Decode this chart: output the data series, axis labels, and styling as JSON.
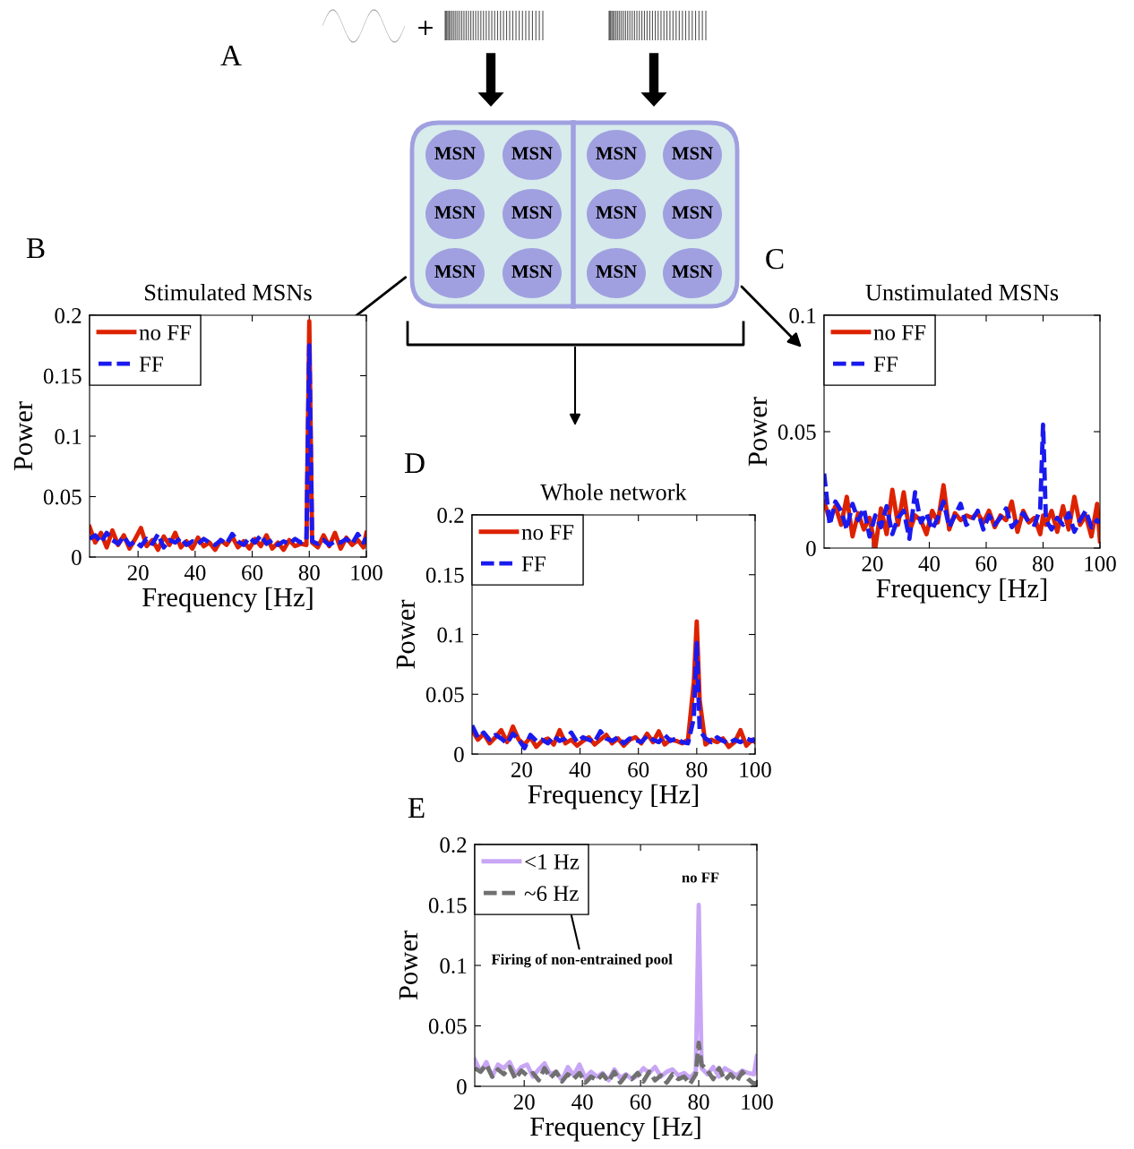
{
  "chart_data": [
    {
      "type": "other",
      "annotations": [
        "A",
        "+",
        "MSN",
        "MSN",
        "MSN",
        "MSN",
        "MSN",
        "MSN",
        "MSN",
        "MSN",
        "MSN",
        "MSN",
        "MSN",
        "MSN"
      ]
    },
    {
      "type": "line",
      "title": "Stimulated MSNs",
      "xlabel": "Frequency [Hz]",
      "ylabel": "Power",
      "annotations": [
        "B"
      ],
      "x": [
        3,
        5,
        7,
        9,
        11,
        13,
        15,
        17,
        19,
        21,
        23,
        25,
        27,
        29,
        31,
        33,
        35,
        37,
        39,
        41,
        43,
        45,
        47,
        49,
        51,
        53,
        55,
        57,
        59,
        61,
        63,
        65,
        67,
        69,
        71,
        73,
        75,
        77,
        79,
        80,
        81,
        83,
        85,
        87,
        89,
        91,
        93,
        95,
        97,
        99,
        100
      ],
      "xlim": [
        3,
        100
      ],
      "ylim": [
        0,
        0.2
      ],
      "xticks": [
        20,
        40,
        60,
        80,
        100
      ],
      "yticks": [
        0,
        0.05,
        0.1,
        0.15,
        0.2
      ],
      "legend": "top left",
      "grid": false,
      "series": [
        {
          "name": "no FF",
          "color": "#dd2200",
          "line_style": "solid",
          "values": [
            0.025,
            0.012,
            0.02,
            0.008,
            0.022,
            0.01,
            0.018,
            0.007,
            0.015,
            0.024,
            0.009,
            0.014,
            0.006,
            0.017,
            0.01,
            0.02,
            0.008,
            0.013,
            0.007,
            0.016,
            0.009,
            0.012,
            0.006,
            0.014,
            0.01,
            0.017,
            0.008,
            0.013,
            0.007,
            0.015,
            0.009,
            0.018,
            0.007,
            0.012,
            0.006,
            0.014,
            0.009,
            0.011,
            0.01,
            0.195,
            0.012,
            0.008,
            0.018,
            0.009,
            0.02,
            0.007,
            0.016,
            0.01,
            0.014,
            0.008,
            0.02
          ]
        },
        {
          "name": "FF",
          "color": "#1a1aee",
          "line_style": "dashed",
          "values": [
            0.015,
            0.018,
            0.012,
            0.02,
            0.014,
            0.011,
            0.017,
            0.01,
            0.013,
            0.009,
            0.015,
            0.011,
            0.019,
            0.008,
            0.014,
            0.012,
            0.016,
            0.01,
            0.013,
            0.011,
            0.015,
            0.012,
            0.01,
            0.014,
            0.011,
            0.019,
            0.013,
            0.01,
            0.016,
            0.012,
            0.018,
            0.011,
            0.014,
            0.01,
            0.013,
            0.011,
            0.015,
            0.012,
            0.014,
            0.175,
            0.013,
            0.011,
            0.014,
            0.01,
            0.013,
            0.012,
            0.015,
            0.011,
            0.019,
            0.012,
            0.016
          ]
        }
      ]
    },
    {
      "type": "line",
      "title": "Unstimulated MSNs",
      "xlabel": "Frequency [Hz]",
      "ylabel": "Power",
      "annotations": [
        "C"
      ],
      "x": [
        3,
        5,
        7,
        9,
        11,
        13,
        15,
        17,
        19,
        21,
        23,
        25,
        27,
        29,
        31,
        33,
        35,
        37,
        39,
        41,
        43,
        45,
        47,
        49,
        51,
        53,
        55,
        57,
        59,
        61,
        63,
        65,
        67,
        69,
        71,
        73,
        75,
        77,
        79,
        80,
        81,
        83,
        85,
        87,
        89,
        91,
        93,
        95,
        97,
        99,
        100
      ],
      "xlim": [
        3,
        100
      ],
      "ylim": [
        0,
        0.1
      ],
      "xticks": [
        20,
        40,
        60,
        80,
        100
      ],
      "yticks": [
        0,
        0.05,
        0.1
      ],
      "legend": "top left",
      "grid": false,
      "series": [
        {
          "name": "no FF",
          "color": "#dd2200",
          "line_style": "solid",
          "values": [
            0.02,
            0.012,
            0.018,
            0.01,
            0.022,
            0.005,
            0.015,
            0.008,
            0.013,
            0.0,
            0.017,
            0.006,
            0.025,
            0.01,
            0.024,
            0.007,
            0.014,
            0.012,
            0.006,
            0.016,
            0.011,
            0.027,
            0.008,
            0.015,
            0.012,
            0.014,
            0.013,
            0.015,
            0.011,
            0.016,
            0.009,
            0.014,
            0.012,
            0.02,
            0.007,
            0.016,
            0.011,
            0.013,
            0.006,
            0.014,
            0.01,
            0.016,
            0.007,
            0.018,
            0.008,
            0.022,
            0.01,
            0.014,
            0.005,
            0.019,
            0.003
          ]
        },
        {
          "name": "FF",
          "color": "#1a1aee",
          "line_style": "dashed",
          "values": [
            0.032,
            0.01,
            0.02,
            0.016,
            0.008,
            0.019,
            0.012,
            0.017,
            0.005,
            0.014,
            0.009,
            0.018,
            0.006,
            0.013,
            0.016,
            0.004,
            0.024,
            0.011,
            0.015,
            0.008,
            0.013,
            0.02,
            0.009,
            0.014,
            0.019,
            0.01,
            0.012,
            0.016,
            0.008,
            0.014,
            0.01,
            0.013,
            0.017,
            0.009,
            0.012,
            0.015,
            0.011,
            0.01,
            0.017,
            0.053,
            0.012,
            0.008,
            0.013,
            0.01,
            0.015,
            0.007,
            0.012,
            0.016,
            0.009,
            0.012,
            0.011
          ]
        }
      ]
    },
    {
      "type": "line",
      "title": "Whole network",
      "xlabel": "Frequency [Hz]",
      "ylabel": "Power",
      "annotations": [
        "D"
      ],
      "x": [
        3,
        5,
        7,
        9,
        11,
        13,
        15,
        17,
        19,
        21,
        23,
        25,
        27,
        29,
        31,
        33,
        35,
        37,
        39,
        41,
        43,
        45,
        47,
        49,
        51,
        53,
        55,
        57,
        59,
        61,
        63,
        65,
        67,
        69,
        71,
        73,
        75,
        77,
        79,
        80,
        81,
        83,
        85,
        87,
        89,
        91,
        93,
        95,
        97,
        99,
        100
      ],
      "xlim": [
        3,
        100
      ],
      "ylim": [
        0,
        0.2
      ],
      "xticks": [
        20,
        40,
        60,
        80,
        100
      ],
      "yticks": [
        0,
        0.05,
        0.1,
        0.15,
        0.2
      ],
      "legend": "top left",
      "grid": false,
      "series": [
        {
          "name": "no FF",
          "color": "#dd2200",
          "line_style": "solid",
          "values": [
            0.02,
            0.012,
            0.017,
            0.009,
            0.014,
            0.02,
            0.01,
            0.023,
            0.012,
            0.008,
            0.014,
            0.006,
            0.011,
            0.013,
            0.008,
            0.02,
            0.009,
            0.012,
            0.007,
            0.011,
            0.014,
            0.008,
            0.012,
            0.016,
            0.009,
            0.013,
            0.007,
            0.012,
            0.014,
            0.009,
            0.017,
            0.01,
            0.019,
            0.008,
            0.012,
            0.011,
            0.009,
            0.012,
            0.06,
            0.111,
            0.045,
            0.008,
            0.012,
            0.01,
            0.013,
            0.006,
            0.01,
            0.02,
            0.007,
            0.012,
            0.01
          ]
        },
        {
          "name": "FF",
          "color": "#1a1aee",
          "line_style": "dashed",
          "values": [
            0.024,
            0.014,
            0.018,
            0.012,
            0.016,
            0.013,
            0.009,
            0.017,
            0.012,
            0.005,
            0.016,
            0.011,
            0.012,
            0.009,
            0.015,
            0.011,
            0.013,
            0.018,
            0.01,
            0.014,
            0.012,
            0.01,
            0.019,
            0.013,
            0.011,
            0.014,
            0.009,
            0.013,
            0.012,
            0.01,
            0.015,
            0.012,
            0.01,
            0.016,
            0.011,
            0.013,
            0.01,
            0.009,
            0.03,
            0.093,
            0.02,
            0.013,
            0.01,
            0.014,
            0.011,
            0.009,
            0.012,
            0.01,
            0.013,
            0.011,
            0.013
          ]
        }
      ]
    },
    {
      "type": "line",
      "xlabel": "Frequency [Hz]",
      "ylabel": "Power",
      "annotations": [
        "E",
        "no FF",
        "Firing of non-entrained pool"
      ],
      "x": [
        3,
        5,
        7,
        9,
        11,
        13,
        15,
        17,
        19,
        21,
        23,
        25,
        27,
        29,
        31,
        33,
        35,
        37,
        39,
        41,
        43,
        45,
        47,
        49,
        51,
        53,
        55,
        57,
        59,
        61,
        63,
        65,
        67,
        69,
        71,
        73,
        75,
        77,
        79,
        80,
        81,
        83,
        85,
        87,
        89,
        91,
        93,
        95,
        97,
        99,
        100
      ],
      "xlim": [
        3,
        100
      ],
      "ylim": [
        0,
        0.2
      ],
      "xticks": [
        20,
        40,
        60,
        80,
        100
      ],
      "yticks": [
        0,
        0.05,
        0.1,
        0.15,
        0.2
      ],
      "legend": "top left",
      "grid": false,
      "series": [
        {
          "name": "<1 Hz",
          "color": "#c9a6f5",
          "line_style": "solid",
          "values": [
            0.022,
            0.012,
            0.02,
            0.008,
            0.018,
            0.015,
            0.02,
            0.01,
            0.016,
            0.018,
            0.008,
            0.014,
            0.019,
            0.01,
            0.012,
            0.005,
            0.016,
            0.009,
            0.018,
            0.007,
            0.012,
            0.008,
            0.011,
            0.005,
            0.014,
            0.007,
            0.01,
            0.006,
            0.009,
            0.015,
            0.011,
            0.016,
            0.008,
            0.012,
            0.014,
            0.009,
            0.011,
            0.007,
            0.012,
            0.15,
            0.015,
            0.01,
            0.016,
            0.008,
            0.015,
            0.012,
            0.009,
            0.013,
            0.011,
            0.01,
            0.025
          ]
        },
        {
          "name": "~6 Hz",
          "color": "#707070",
          "line_style": "dashed",
          "values": [
            0.015,
            0.012,
            0.018,
            0.008,
            0.014,
            0.01,
            0.016,
            0.006,
            0.013,
            0.009,
            0.011,
            0.005,
            0.015,
            0.007,
            0.012,
            0.004,
            0.01,
            0.006,
            0.011,
            0.003,
            0.008,
            0.005,
            0.01,
            0.004,
            0.012,
            0.003,
            0.009,
            0.006,
            0.011,
            0.004,
            0.012,
            0.005,
            0.009,
            0.003,
            0.01,
            0.006,
            0.008,
            0.002,
            0.01,
            0.036,
            0.018,
            0.013,
            0.006,
            0.015,
            0.005,
            0.01,
            0.004,
            0.012,
            0.006,
            0.002,
            0.003
          ]
        }
      ]
    }
  ]
}
